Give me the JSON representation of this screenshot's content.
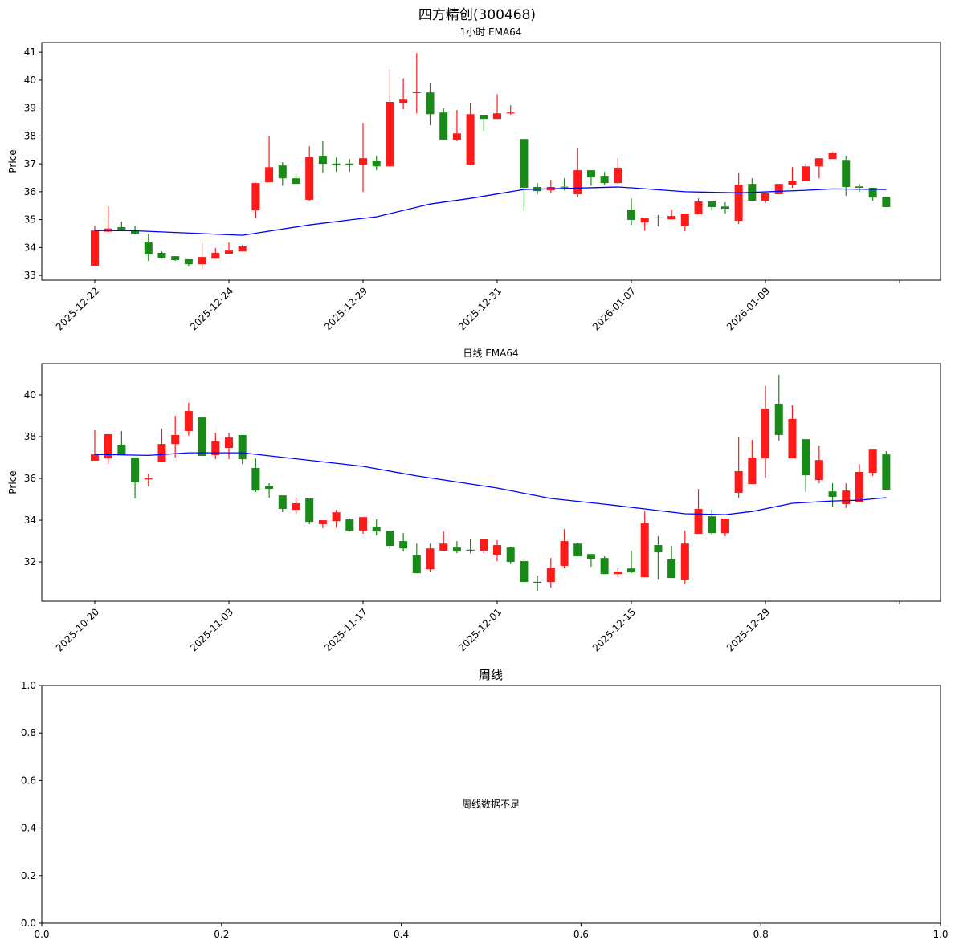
{
  "title": "四方精创(300468)",
  "colors": {
    "up": "#ff1a1a",
    "down": "#188a18",
    "ema": "#0000ff",
    "axis": "#000000"
  },
  "chart_data": [
    {
      "type": "candlestick",
      "title": "1小时 EMA64",
      "ylabel": "Price",
      "ylim": [
        32.83,
        41.35
      ],
      "xlim": [
        -3.95,
        63.05
      ],
      "yticks": [
        33,
        34,
        35,
        36,
        37,
        38,
        39,
        40,
        41
      ],
      "xticks": [
        {
          "index": 0,
          "label": "2025-12-22"
        },
        {
          "index": 10,
          "label": "2025-12-24"
        },
        {
          "index": 20,
          "label": "2025-12-29"
        },
        {
          "index": 30,
          "label": "2025-12-31"
        },
        {
          "index": 40,
          "label": "2026-01-07"
        },
        {
          "index": 50,
          "label": "2026-01-09"
        },
        {
          "index": 60,
          "label": ""
        }
      ],
      "ohlc_fields": [
        "open",
        "high",
        "low",
        "close"
      ],
      "candles": [
        [
          33.35,
          34.78,
          33.35,
          34.61
        ],
        [
          34.57,
          35.47,
          34.55,
          34.68
        ],
        [
          34.73,
          34.93,
          34.6,
          34.62
        ],
        [
          34.61,
          34.78,
          34.47,
          34.5
        ],
        [
          34.18,
          34.47,
          33.52,
          33.75
        ],
        [
          33.81,
          33.86,
          33.6,
          33.63
        ],
        [
          33.69,
          33.69,
          33.52,
          33.55
        ],
        [
          33.58,
          33.58,
          33.32,
          33.4
        ],
        [
          33.4,
          34.18,
          33.23,
          33.66
        ],
        [
          33.6,
          33.98,
          33.6,
          33.81
        ],
        [
          33.78,
          34.18,
          33.78,
          33.89
        ],
        [
          33.86,
          34.09,
          33.86,
          34.04
        ],
        [
          35.33,
          36.33,
          35.04,
          36.31
        ],
        [
          36.34,
          38.0,
          36.34,
          36.88
        ],
        [
          36.94,
          37.06,
          36.22,
          36.48
        ],
        [
          36.48,
          36.63,
          36.28,
          36.28
        ],
        [
          35.71,
          37.63,
          35.68,
          37.26
        ],
        [
          37.29,
          37.81,
          36.68,
          37.0
        ],
        [
          37.01,
          37.23,
          36.71,
          37.0
        ],
        [
          37.01,
          37.17,
          36.71,
          37.0
        ],
        [
          36.97,
          38.47,
          35.99,
          37.2
        ],
        [
          37.12,
          37.29,
          36.77,
          36.91
        ],
        [
          36.91,
          40.4,
          36.91,
          39.22
        ],
        [
          39.19,
          40.06,
          38.96,
          39.33
        ],
        [
          39.56,
          40.97,
          38.81,
          39.57
        ],
        [
          39.56,
          39.88,
          38.38,
          38.78
        ],
        [
          38.84,
          38.99,
          37.86,
          37.86
        ],
        [
          37.86,
          38.93,
          37.81,
          38.09
        ],
        [
          36.97,
          39.19,
          36.95,
          38.78
        ],
        [
          38.76,
          38.76,
          38.18,
          38.61
        ],
        [
          38.61,
          39.5,
          38.61,
          38.81
        ],
        [
          38.81,
          39.1,
          38.76,
          38.84
        ],
        [
          37.89,
          37.89,
          35.33,
          36.14
        ],
        [
          36.17,
          36.31,
          35.91,
          36.02
        ],
        [
          36.05,
          36.42,
          35.96,
          36.17
        ],
        [
          36.18,
          36.48,
          36.05,
          36.17
        ],
        [
          35.91,
          37.58,
          35.79,
          36.77
        ],
        [
          36.77,
          36.77,
          36.22,
          36.51
        ],
        [
          36.57,
          36.71,
          36.25,
          36.31
        ],
        [
          36.31,
          37.2,
          36.29,
          36.86
        ],
        [
          35.36,
          35.76,
          34.81,
          34.99
        ],
        [
          34.9,
          35.07,
          34.61,
          35.07
        ],
        [
          35.08,
          35.16,
          34.76,
          35.07
        ],
        [
          35.01,
          35.36,
          35.01,
          35.13
        ],
        [
          34.76,
          35.22,
          34.58,
          35.22
        ],
        [
          35.19,
          35.76,
          35.19,
          35.65
        ],
        [
          35.65,
          35.65,
          35.33,
          35.45
        ],
        [
          35.47,
          35.62,
          35.22,
          35.39
        ],
        [
          34.96,
          36.68,
          34.84,
          36.25
        ],
        [
          36.28,
          36.48,
          35.68,
          35.68
        ],
        [
          35.68,
          35.99,
          35.59,
          35.94
        ],
        [
          35.91,
          36.28,
          35.91,
          36.28
        ],
        [
          36.25,
          36.88,
          36.14,
          36.4
        ],
        [
          36.37,
          37.0,
          36.37,
          36.91
        ],
        [
          36.91,
          37.2,
          36.48,
          37.2
        ],
        [
          37.17,
          37.43,
          37.17,
          37.4
        ],
        [
          37.14,
          37.29,
          35.85,
          36.17
        ],
        [
          36.19,
          36.28,
          35.99,
          36.14
        ],
        [
          36.14,
          36.14,
          35.68,
          35.79
        ],
        [
          35.82,
          35.82,
          35.45,
          35.45
        ]
      ],
      "ema": [
        [
          0,
          34.61
        ],
        [
          3,
          34.6
        ],
        [
          11,
          34.44
        ],
        [
          16,
          34.81
        ],
        [
          19,
          34.99
        ],
        [
          21,
          35.1
        ],
        [
          25,
          35.56
        ],
        [
          28,
          35.76
        ],
        [
          32,
          36.08
        ],
        [
          39,
          36.17
        ],
        [
          40,
          36.14
        ],
        [
          44,
          36.0
        ],
        [
          48,
          35.96
        ],
        [
          53,
          36.05
        ],
        [
          55,
          36.1
        ],
        [
          59,
          36.08
        ]
      ]
    },
    {
      "type": "candlestick",
      "title": "日线 EMA64",
      "ylabel": "Price",
      "ylim": [
        30.12,
        41.5
      ],
      "xlim": [
        -3.95,
        63.05
      ],
      "yticks": [
        32,
        34,
        36,
        38,
        40
      ],
      "xticks": [
        {
          "index": 0,
          "label": "2025-10-20"
        },
        {
          "index": 10,
          "label": "2025-11-03"
        },
        {
          "index": 20,
          "label": "2025-11-17"
        },
        {
          "index": 30,
          "label": "2025-12-01"
        },
        {
          "index": 40,
          "label": "2025-12-15"
        },
        {
          "index": 50,
          "label": "2025-12-29"
        },
        {
          "index": 60,
          "label": ""
        }
      ],
      "ohlc_fields": [
        "open",
        "high",
        "low",
        "close"
      ],
      "candles": [
        [
          36.85,
          38.31,
          36.85,
          37.15
        ],
        [
          36.96,
          38.12,
          36.69,
          38.12
        ],
        [
          37.62,
          38.27,
          37.12,
          37.12
        ],
        [
          37.0,
          37.0,
          35.04,
          35.81
        ],
        [
          35.98,
          36.23,
          35.62,
          36.0
        ],
        [
          36.77,
          38.38,
          36.77,
          37.65
        ],
        [
          37.65,
          39.0,
          37.0,
          38.08
        ],
        [
          38.27,
          39.62,
          38.05,
          39.23
        ],
        [
          38.92,
          38.95,
          37.08,
          37.08
        ],
        [
          37.12,
          38.19,
          36.92,
          37.77
        ],
        [
          37.46,
          38.19,
          36.92,
          37.96
        ],
        [
          38.08,
          38.08,
          36.69,
          36.92
        ],
        [
          36.5,
          36.96,
          35.35,
          35.42
        ],
        [
          35.62,
          35.77,
          35.08,
          35.5
        ],
        [
          35.19,
          35.19,
          34.38,
          34.54
        ],
        [
          34.5,
          35.08,
          34.31,
          34.81
        ],
        [
          35.04,
          35.04,
          33.81,
          33.92
        ],
        [
          33.81,
          34.0,
          33.62,
          34.0
        ],
        [
          33.96,
          34.5,
          33.65,
          34.38
        ],
        [
          34.04,
          34.08,
          33.46,
          33.5
        ],
        [
          33.5,
          34.15,
          33.35,
          34.15
        ],
        [
          33.69,
          34.04,
          33.27,
          33.46
        ],
        [
          33.5,
          33.5,
          32.62,
          32.77
        ],
        [
          33.0,
          33.38,
          32.5,
          32.65
        ],
        [
          32.31,
          32.88,
          31.46,
          31.46
        ],
        [
          31.65,
          32.88,
          31.54,
          32.65
        ],
        [
          32.54,
          33.46,
          32.54,
          32.88
        ],
        [
          32.69,
          33.0,
          32.42,
          32.5
        ],
        [
          32.59,
          33.08,
          32.42,
          32.58
        ],
        [
          32.54,
          33.08,
          32.42,
          33.08
        ],
        [
          32.35,
          33.04,
          32.04,
          32.81
        ],
        [
          32.69,
          32.73,
          31.92,
          32.0
        ],
        [
          32.04,
          32.12,
          31.04,
          31.04
        ],
        [
          31.05,
          31.35,
          30.62,
          31.04
        ],
        [
          31.04,
          32.19,
          30.77,
          31.73
        ],
        [
          31.81,
          33.58,
          31.69,
          33.0
        ],
        [
          32.88,
          32.92,
          32.27,
          32.27
        ],
        [
          32.38,
          32.38,
          31.77,
          32.15
        ],
        [
          32.19,
          32.27,
          31.42,
          31.42
        ],
        [
          31.42,
          31.73,
          31.27,
          31.54
        ],
        [
          31.69,
          32.54,
          31.46,
          31.5
        ],
        [
          31.27,
          34.42,
          31.27,
          33.85
        ],
        [
          32.81,
          33.23,
          31.19,
          32.46
        ],
        [
          32.12,
          32.77,
          31.23,
          31.23
        ],
        [
          31.15,
          33.5,
          30.92,
          32.88
        ],
        [
          33.35,
          35.5,
          33.35,
          34.54
        ],
        [
          34.19,
          34.5,
          33.3,
          33.38
        ],
        [
          33.38,
          34.08,
          33.23,
          34.08
        ],
        [
          35.31,
          38.0,
          35.08,
          36.35
        ],
        [
          35.73,
          37.85,
          35.73,
          37.0
        ],
        [
          36.96,
          40.42,
          36.04,
          39.35
        ],
        [
          39.58,
          40.96,
          37.81,
          38.08
        ],
        [
          36.96,
          39.5,
          36.96,
          38.85
        ],
        [
          37.88,
          37.88,
          35.35,
          36.15
        ],
        [
          35.92,
          37.58,
          35.77,
          36.88
        ],
        [
          35.38,
          35.77,
          34.62,
          35.12
        ],
        [
          34.77,
          35.77,
          34.58,
          35.42
        ],
        [
          34.88,
          36.69,
          34.88,
          36.31
        ],
        [
          36.27,
          37.42,
          36.12,
          37.42
        ],
        [
          37.15,
          37.31,
          35.46,
          35.46
        ]
      ],
      "ema": [
        [
          0,
          37.15
        ],
        [
          4,
          37.1
        ],
        [
          7,
          37.23
        ],
        [
          11,
          37.23
        ],
        [
          20,
          36.58
        ],
        [
          24,
          36.12
        ],
        [
          30,
          35.54
        ],
        [
          34,
          35.04
        ],
        [
          38,
          34.77
        ],
        [
          41,
          34.54
        ],
        [
          44,
          34.31
        ],
        [
          47,
          34.27
        ],
        [
          49,
          34.42
        ],
        [
          52,
          34.81
        ],
        [
          55,
          34.92
        ],
        [
          57,
          34.96
        ],
        [
          59,
          35.08
        ]
      ]
    },
    {
      "type": "empty",
      "title": "周线",
      "message": "周线数据不足",
      "xlim": [
        0,
        1
      ],
      "ylim": [
        0,
        1
      ],
      "xticks": [
        "0.0",
        "0.2",
        "0.4",
        "0.6",
        "0.8",
        "1.0"
      ],
      "yticks": [
        "0.0",
        "0.2",
        "0.4",
        "0.6",
        "0.8",
        "1.0"
      ]
    }
  ]
}
